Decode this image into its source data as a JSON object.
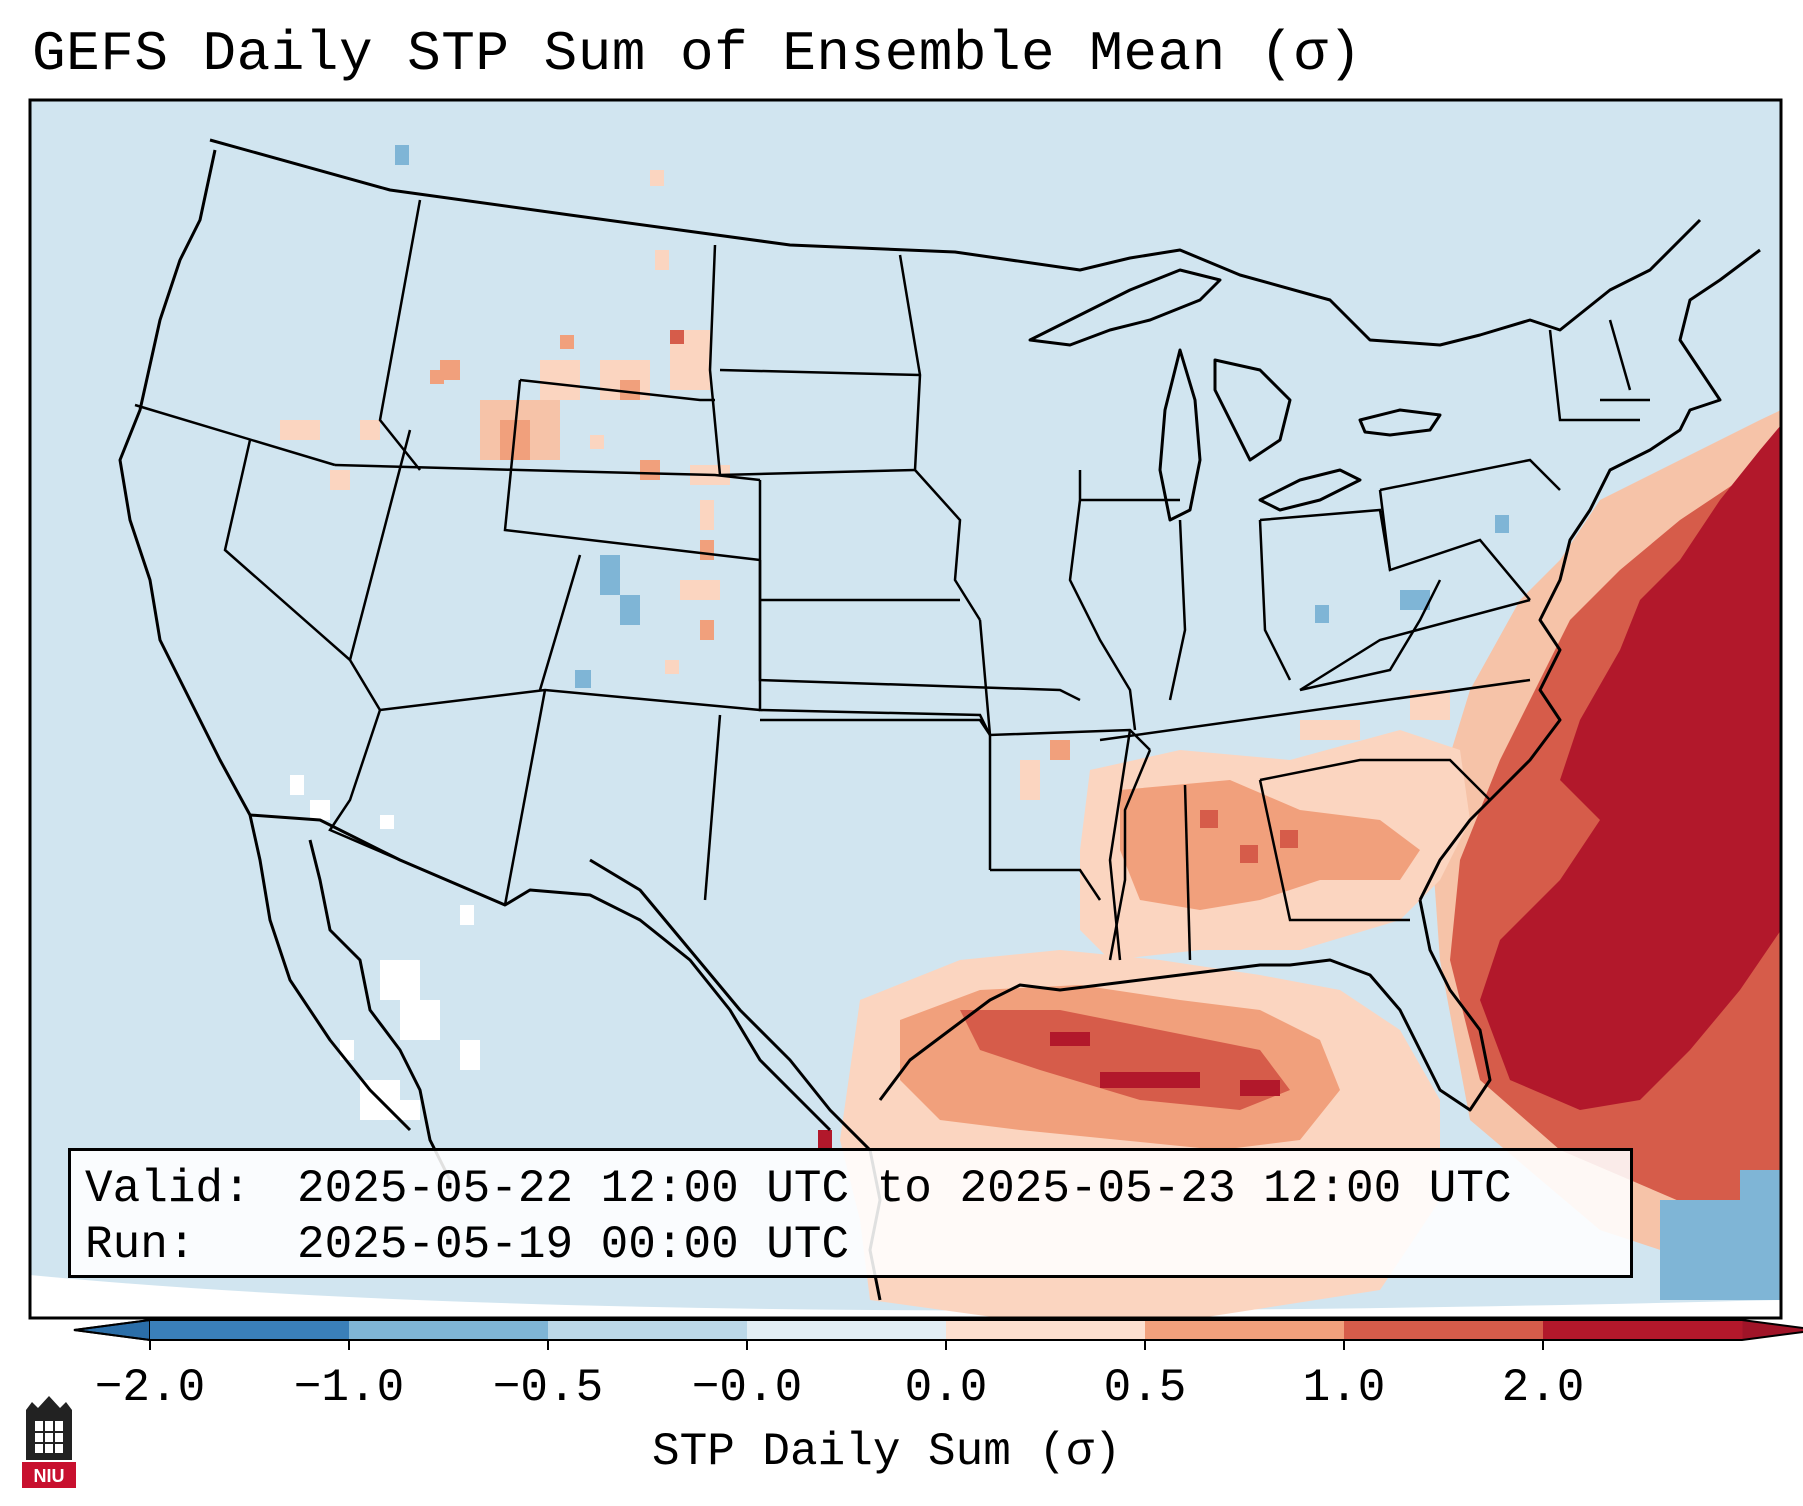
{
  "title": "GEFS Daily STP Sum of Ensemble Mean (σ)",
  "info": {
    "valid_label": "Valid:",
    "valid_value": "2025-05-22 12:00 UTC to 2025-05-23 12:00 UTC",
    "run_label": "Run:",
    "run_value": "2025-05-19 00:00 UTC"
  },
  "colorbar": {
    "label": "STP Daily Sum (σ)",
    "ticks": [
      "−2.0",
      "−1.0",
      "−0.5",
      "−0.0",
      "0.0",
      "0.5",
      "1.0",
      "2.0"
    ],
    "colors": [
      "#3a7fb9",
      "#7fb5d6",
      "#bcd8e8",
      "#e3eef4",
      "#fde0d0",
      "#f1a07c",
      "#d65c4a",
      "#b2182b"
    ],
    "extend_low_color": "#2b6ea8",
    "extend_high_color": "#a01428"
  },
  "map": {
    "background_color": "#d1e5f0",
    "outside_color": "#ffffff",
    "line_color": "#000000"
  },
  "logo": {
    "text": "NIU",
    "color": "#c8102e"
  }
}
